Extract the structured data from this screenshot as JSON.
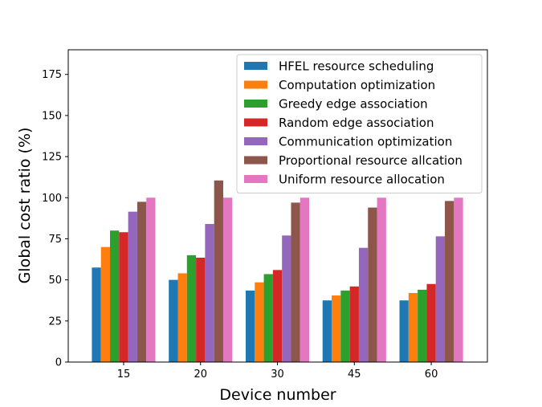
{
  "chart_data": {
    "type": "bar",
    "xlabel": "Device number",
    "ylabel": "Global cost ratio (%)",
    "categories": [
      "15",
      "20",
      "30",
      "45",
      "60"
    ],
    "ylim": [
      0,
      190
    ],
    "yticks": [
      0,
      25,
      50,
      75,
      100,
      125,
      150,
      175
    ],
    "legend_position": "top-right",
    "grid": false,
    "series": [
      {
        "name": "HFEL resource scheduling",
        "color": "#1f77b4",
        "values": [
          57.5,
          50,
          43.5,
          37.5,
          37.5
        ]
      },
      {
        "name": "Computation optimization",
        "color": "#ff7f0e",
        "values": [
          70,
          54,
          48.5,
          40.5,
          42
        ]
      },
      {
        "name": "Greedy edge association",
        "color": "#2ca02c",
        "values": [
          80,
          65,
          53.5,
          43.5,
          44
        ]
      },
      {
        "name": "Random edge association",
        "color": "#d62728",
        "values": [
          79,
          63.5,
          56,
          46,
          47.5
        ]
      },
      {
        "name": "Communication optimization",
        "color": "#9467bd",
        "values": [
          91.5,
          84,
          77,
          69.5,
          76.5
        ]
      },
      {
        "name": "Proportional resource allcation",
        "color": "#8c564b",
        "values": [
          97.5,
          110.5,
          97,
          94,
          98
        ]
      },
      {
        "name": "Uniform resource allocation",
        "color": "#e377c2",
        "values": [
          100,
          100,
          100,
          100,
          100
        ]
      }
    ]
  }
}
